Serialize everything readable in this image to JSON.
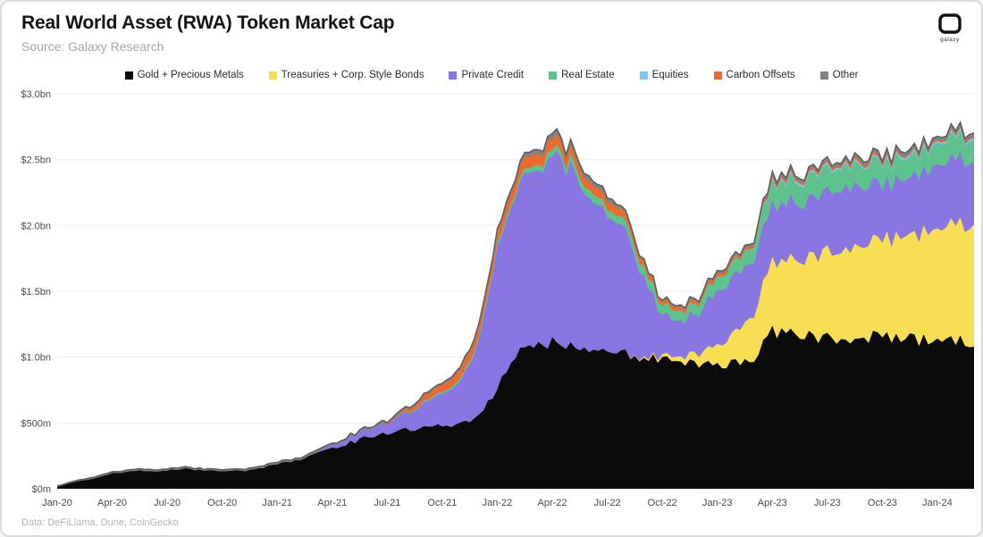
{
  "header": {
    "title": "Real World Asset (RWA) Token Market Cap",
    "source": "Source: Galaxy Research"
  },
  "logo": {
    "label": "galaxy"
  },
  "footer": {
    "note": "Data: DeFiLlama, Dune, CoinGecko"
  },
  "chart_data": {
    "type": "area",
    "stacked": true,
    "title": "Real World Asset (RWA) Token Market Cap",
    "unit": "USD millions",
    "grid": "horizontal",
    "legend_position": "top",
    "ylim": [
      0,
      3000
    ],
    "y_ticks": [
      {
        "value": 0,
        "label": "$0m"
      },
      {
        "value": 500,
        "label": "$500m"
      },
      {
        "value": 1000,
        "label": "$1.0bn"
      },
      {
        "value": 1500,
        "label": "$1.5bn"
      },
      {
        "value": 2000,
        "label": "$2.0bn"
      },
      {
        "value": 2500,
        "label": "$2.5bn"
      },
      {
        "value": 3000,
        "label": "$3.0bn"
      }
    ],
    "x_ticks": [
      "Jan-20",
      "Apr-20",
      "Jul-20",
      "Oct-20",
      "Jan-21",
      "Apr-21",
      "Jul-21",
      "Oct-21",
      "Jan-22",
      "Apr-22",
      "Jul-22",
      "Oct-22",
      "Jan-23",
      "Apr-23",
      "Jul-23",
      "Oct-23",
      "Jan-24"
    ],
    "x_tick_month_step": 3,
    "months": [
      "Jan-20",
      "Feb-20",
      "Mar-20",
      "Apr-20",
      "May-20",
      "Jun-20",
      "Jul-20",
      "Aug-20",
      "Sep-20",
      "Oct-20",
      "Nov-20",
      "Dec-20",
      "Jan-21",
      "Feb-21",
      "Mar-21",
      "Apr-21",
      "May-21",
      "Jun-21",
      "Jul-21",
      "Aug-21",
      "Sep-21",
      "Oct-21",
      "Nov-21",
      "Dec-21",
      "Jan-22",
      "Feb-22",
      "Mar-22",
      "Apr-22",
      "May-22",
      "Jun-22",
      "Jul-22",
      "Aug-22",
      "Sep-22",
      "Oct-22",
      "Nov-22",
      "Dec-22",
      "Jan-23",
      "Feb-23",
      "Mar-23",
      "Apr-23",
      "May-23",
      "Jun-23",
      "Jul-23",
      "Aug-23",
      "Sep-23",
      "Oct-23",
      "Nov-23",
      "Dec-23",
      "Jan-24",
      "Feb-24",
      "Mar-24"
    ],
    "series": [
      {
        "name": "Gold + Precious Metals",
        "color": "#0b0b0b",
        "values": [
          15,
          55,
          80,
          115,
          135,
          135,
          140,
          150,
          140,
          135,
          135,
          150,
          190,
          215,
          260,
          305,
          350,
          395,
          430,
          450,
          460,
          475,
          490,
          545,
          760,
          1020,
          1085,
          1105,
          1085,
          1030,
          1050,
          1020,
          985,
          985,
          970,
          950,
          950,
          965,
          985,
          1200,
          1165,
          1155,
          1140,
          1120,
          1155,
          1165,
          1140,
          1120,
          1130,
          1120,
          1120
        ]
      },
      {
        "name": "Treasuries + Corp. Style Bonds",
        "color": "#f8de52",
        "values": [
          0,
          0,
          0,
          0,
          0,
          0,
          0,
          0,
          0,
          0,
          0,
          0,
          0,
          0,
          0,
          0,
          0,
          0,
          0,
          0,
          0,
          0,
          0,
          0,
          0,
          0,
          0,
          0,
          0,
          0,
          0,
          0,
          10,
          20,
          40,
          80,
          150,
          230,
          350,
          530,
          560,
          600,
          640,
          680,
          700,
          730,
          760,
          800,
          870,
          900,
          905
        ]
      },
      {
        "name": "Private Credit",
        "color": "#8a76e3",
        "values": [
          0,
          0,
          0,
          0,
          0,
          0,
          0,
          0,
          0,
          0,
          0,
          0,
          0,
          0,
          0,
          20,
          40,
          60,
          75,
          120,
          180,
          240,
          320,
          560,
          1050,
          1250,
          1300,
          1420,
          1350,
          1150,
          1050,
          950,
          600,
          300,
          270,
          300,
          420,
          430,
          430,
          420,
          430,
          440,
          450,
          460,
          450,
          410,
          430,
          450,
          490,
          490,
          495
        ]
      },
      {
        "name": "Real Estate",
        "color": "#5dc28d",
        "values": [
          0,
          0,
          0,
          0,
          0,
          0,
          0,
          0,
          0,
          0,
          0,
          0,
          0,
          0,
          0,
          0,
          0,
          0,
          0,
          5,
          10,
          15,
          20,
          20,
          25,
          30,
          40,
          50,
          50,
          55,
          55,
          60,
          70,
          75,
          75,
          85,
          100,
          110,
          120,
          160,
          160,
          165,
          170,
          165,
          160,
          160,
          160,
          155,
          160,
          160,
          160
        ]
      },
      {
        "name": "Equities",
        "color": "#82c4e9",
        "values": [
          0,
          0,
          0,
          0,
          0,
          0,
          0,
          0,
          0,
          0,
          0,
          0,
          0,
          0,
          0,
          0,
          0,
          0,
          0,
          0,
          0,
          0,
          0,
          0,
          0,
          0,
          0,
          0,
          0,
          0,
          0,
          0,
          0,
          0,
          0,
          0,
          0,
          0,
          0,
          15,
          15,
          15,
          15,
          15,
          15,
          15,
          15,
          15,
          15,
          15,
          15
        ]
      },
      {
        "name": "Carbon Offsets",
        "color": "#ed6a2d",
        "values": [
          0,
          0,
          0,
          0,
          0,
          0,
          0,
          0,
          0,
          0,
          0,
          0,
          0,
          0,
          0,
          0,
          0,
          0,
          5,
          20,
          40,
          55,
          70,
          75,
          80,
          85,
          85,
          80,
          75,
          65,
          60,
          55,
          40,
          30,
          25,
          25,
          25,
          20,
          20,
          20,
          15,
          15,
          15,
          15,
          15,
          15,
          10,
          10,
          10,
          10,
          10
        ]
      },
      {
        "name": "Other",
        "color": "#828282",
        "values": [
          5,
          8,
          10,
          10,
          12,
          12,
          12,
          12,
          12,
          12,
          12,
          14,
          15,
          15,
          18,
          15,
          15,
          15,
          15,
          15,
          15,
          15,
          18,
          20,
          25,
          30,
          35,
          40,
          35,
          35,
          35,
          20,
          15,
          15,
          15,
          15,
          20,
          20,
          20,
          25,
          25,
          25,
          25,
          25,
          30,
          30,
          30,
          30,
          30,
          30,
          30
        ]
      }
    ],
    "top_edge_color": "#5f5f5f",
    "gridline_color": "#ececec"
  }
}
